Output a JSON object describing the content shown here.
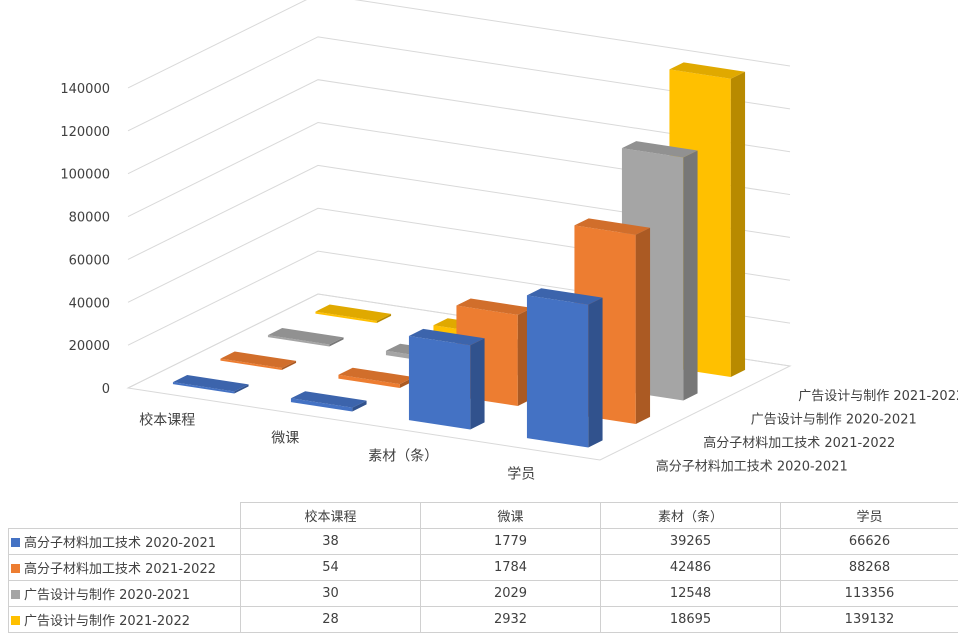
{
  "chart_data": {
    "type": "bar",
    "variant": "3d-column",
    "title": "",
    "categories": [
      "校本课程",
      "微课",
      "素材（条）",
      "学员"
    ],
    "series": [
      {
        "name": "高分子材料加工技术 2020-2021",
        "color": "#4472C4",
        "values": [
          38,
          1779,
          39265,
          66626
        ]
      },
      {
        "name": "高分子材料加工技术 2021-2022",
        "color": "#ED7D31",
        "values": [
          54,
          1784,
          42486,
          88268
        ]
      },
      {
        "name": "广告设计与制作 2020-2021",
        "color": "#A5A5A5",
        "values": [
          30,
          2029,
          12548,
          113356
        ]
      },
      {
        "name": "广告设计与制作 2021-2022",
        "color": "#FFC000",
        "values": [
          28,
          2932,
          18695,
          139132
        ]
      }
    ],
    "y_ticks": [
      "0",
      "20000",
      "40000",
      "60000",
      "80000",
      "100000",
      "120000",
      "140000"
    ],
    "ylim": [
      0,
      140000
    ],
    "grid": true,
    "data_table": true
  }
}
